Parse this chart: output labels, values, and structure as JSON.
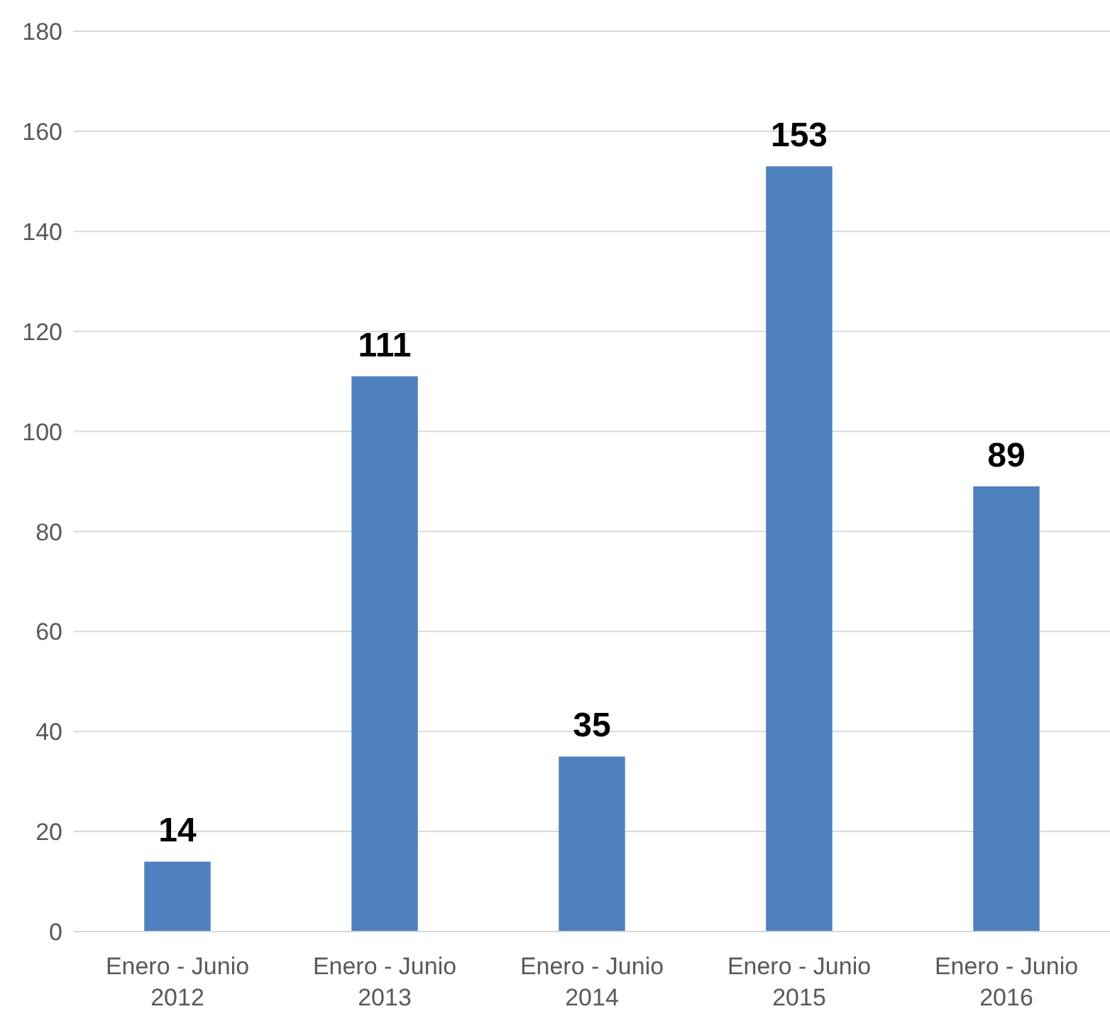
{
  "chart_data": {
    "type": "bar",
    "categories": [
      "Enero - Junio 2012",
      "Enero - Junio 2013",
      "Enero - Junio 2014",
      "Enero - Junio 2015",
      "Enero - Junio 2016"
    ],
    "values": [
      14,
      111,
      35,
      153,
      89
    ],
    "color": "#4e81bd",
    "ylim": [
      0,
      180
    ],
    "yticks": [
      0,
      20,
      40,
      60,
      80,
      100,
      120,
      140,
      160,
      180
    ],
    "grid": "y",
    "data_labels": true
  }
}
